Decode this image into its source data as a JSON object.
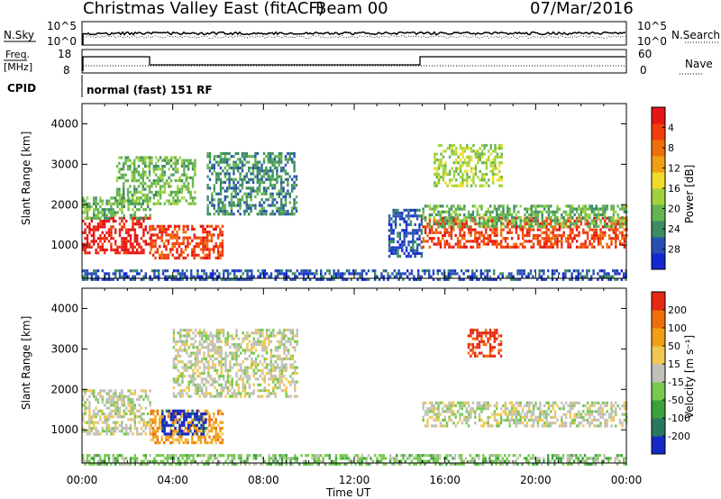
{
  "header": {
    "station": "Christmas Valley East (fitACF)",
    "beam": "Beam 00",
    "date": "07/Mar/2016"
  },
  "status_panels": {
    "nsky_label": "N.Sky",
    "nsearch_label": "N.Search",
    "freq_label_line1": "Freq.",
    "freq_label_line2": "[MHz]",
    "nave_label": "Nave",
    "cpid_label": "CPID",
    "cpid_text": "normal (fast) 151 RF",
    "noise_ticks": [
      "10^5",
      "10^0"
    ],
    "freq_ticks": [
      "18",
      "8"
    ],
    "nave_ticks": [
      "60",
      "0"
    ]
  },
  "chart_data": [
    {
      "type": "heatmap",
      "name": "power",
      "ylabel": "Slant Range [km]",
      "xlabel": "Time UT",
      "xlim": [
        0,
        24
      ],
      "ylim": [
        180,
        4500
      ],
      "y_ticks": [
        1000,
        2000,
        3000,
        4000
      ],
      "x_tick_labels": [
        "00:00",
        "04:00",
        "08:00",
        "12:00",
        "16:00",
        "20:00",
        "00:00"
      ],
      "colorbar": {
        "label": "Power [dB]",
        "ticks": [
          "4",
          "8",
          "12",
          "16",
          "20",
          "24",
          "28"
        ],
        "colors": [
          "#1428d2",
          "#2850b4",
          "#3c8c64",
          "#64b450",
          "#a0d23c",
          "#f0dc28",
          "#f0a014",
          "#f06e0a",
          "#f03c0a",
          "#e61414"
        ]
      },
      "regions": [
        {
          "t0": 0.0,
          "t1": 3.0,
          "r0": 800,
          "r1": 1700,
          "level": 9
        },
        {
          "t0": 0.0,
          "t1": 3.0,
          "r0": 1700,
          "r1": 2200,
          "level": 3
        },
        {
          "t0": 3.0,
          "t1": 6.2,
          "r0": 650,
          "r1": 1500,
          "level": 8
        },
        {
          "t0": 1.5,
          "t1": 5.0,
          "r0": 2000,
          "r1": 3200,
          "level": 3
        },
        {
          "t0": 5.5,
          "t1": 9.5,
          "r0": 1800,
          "r1": 3300,
          "level": 2
        },
        {
          "t0": 13.5,
          "t1": 15.0,
          "r0": 700,
          "r1": 1900,
          "level": 1
        },
        {
          "t0": 15.0,
          "t1": 24.0,
          "r0": 950,
          "r1": 1700,
          "level": 8
        },
        {
          "t0": 15.0,
          "t1": 24.0,
          "r0": 1500,
          "r1": 2000,
          "level": 3
        },
        {
          "t0": 15.5,
          "t1": 18.5,
          "r0": 2500,
          "r1": 3500,
          "level": 4
        },
        {
          "t0": 0.0,
          "t1": 24.0,
          "r0": 180,
          "r1": 400,
          "level": 1
        }
      ]
    },
    {
      "type": "heatmap",
      "name": "velocity",
      "ylabel": "Slant Range [km]",
      "xlabel": "Time UT",
      "xlim": [
        0,
        24
      ],
      "ylim": [
        180,
        4500
      ],
      "y_ticks": [
        1000,
        2000,
        3000,
        4000
      ],
      "x_tick_labels": [
        "00:00",
        "04:00",
        "08:00",
        "12:00",
        "16:00",
        "20:00",
        "00:00"
      ],
      "colorbar": {
        "label": "Velocity [m s⁻¹]",
        "ticks": [
          "200",
          "100",
          "50",
          "15",
          "-15",
          "-50",
          "-100",
          "-200"
        ],
        "colors": [
          "#1428c8",
          "#287860",
          "#3ca03c",
          "#78c850",
          "#c0c0b8",
          "#f0c850",
          "#f0a014",
          "#f06e0a",
          "#e62814"
        ]
      },
      "regions": [
        {
          "t0": 0.0,
          "t1": 3.0,
          "r0": 900,
          "r1": 2000,
          "level": 4
        },
        {
          "t0": 3.0,
          "t1": 6.2,
          "r0": 700,
          "r1": 1500,
          "level": 6
        },
        {
          "t0": 3.5,
          "t1": 5.5,
          "r0": 900,
          "r1": 1500,
          "level": 0
        },
        {
          "t0": 4.0,
          "t1": 9.5,
          "r0": 1800,
          "r1": 3500,
          "level": 4
        },
        {
          "t0": 15.0,
          "t1": 24.0,
          "r0": 1100,
          "r1": 1700,
          "level": 4
        },
        {
          "t0": 17.0,
          "t1": 18.5,
          "r0": 2800,
          "r1": 3500,
          "level": 8
        },
        {
          "t0": 0.0,
          "t1": 24.0,
          "r0": 180,
          "r1": 400,
          "level": 3
        }
      ]
    }
  ]
}
